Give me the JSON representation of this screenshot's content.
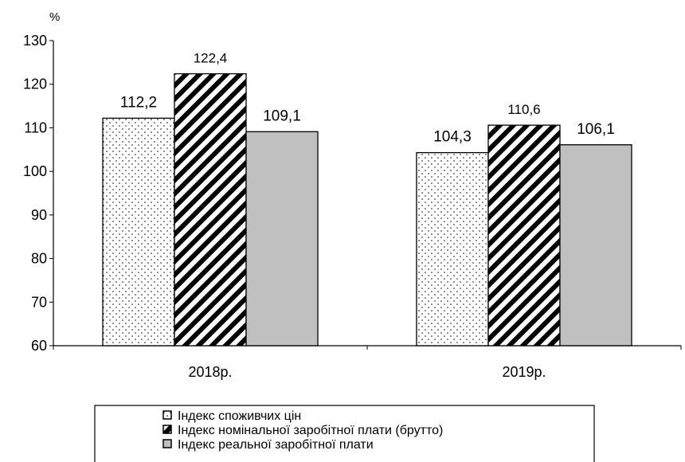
{
  "chart_data": {
    "type": "bar",
    "unit_label": "%",
    "categories": [
      "2018р.",
      "2019р."
    ],
    "series": [
      {
        "name": "Індекс споживчих цін",
        "values": [
          112.2,
          104.3
        ],
        "labels": [
          "112,2",
          "104,3"
        ],
        "fill": "dotted"
      },
      {
        "name": "Індекс номінальної заробітної плати (брутто)",
        "values": [
          122.4,
          110.6
        ],
        "labels": [
          "122,4",
          "110,6"
        ],
        "fill": "diagonal-hatch"
      },
      {
        "name": "Індекс реальної заробітної плати",
        "values": [
          109.1,
          106.1
        ],
        "labels": [
          "109,1",
          "106,1"
        ],
        "fill": "#c0c0c0"
      }
    ],
    "ylim": [
      60,
      130
    ],
    "yticks": [
      60,
      70,
      80,
      90,
      100,
      110,
      120,
      130
    ],
    "grid": false,
    "legend": "bottom"
  }
}
